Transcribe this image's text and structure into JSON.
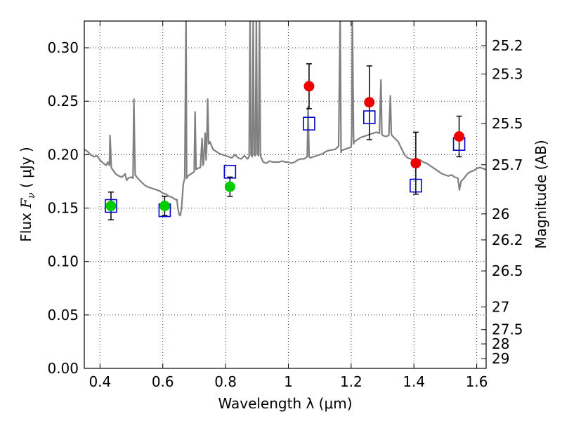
{
  "chart_data": {
    "type": "scatter",
    "title": "",
    "xlabel": "Wavelength  λ (μm)",
    "ylabel_left_text": "Flux ",
    "ylabel_left_symbol": "F",
    "ylabel_left_subscript": "ν",
    "ylabel_left_unit": " ( μJy )",
    "ylabel_right": "Magnitude (AB)",
    "xlim": [
      0.35,
      1.63
    ],
    "ylim": [
      0.0,
      0.325
    ],
    "grid": true,
    "x_ticks": [
      0.4,
      0.6,
      0.8,
      1.0,
      1.2,
      1.4,
      1.6
    ],
    "x_tick_labels": [
      "0.4",
      "0.6",
      "0.8",
      "1",
      "1.2",
      "1.4",
      "1.6"
    ],
    "y_ticks": [
      0.0,
      0.05,
      0.1,
      0.15,
      0.2,
      0.25,
      0.3
    ],
    "y_tick_labels": [
      "0.00",
      "0.05",
      "0.10",
      "0.15",
      "0.20",
      "0.25",
      "0.30"
    ],
    "right_ticks": [
      {
        "mag": 25.2,
        "label": "25.2"
      },
      {
        "mag": 25.3,
        "label": "25.3"
      },
      {
        "mag": 25.5,
        "label": "25.5"
      },
      {
        "mag": 25.7,
        "label": "25.7"
      },
      {
        "mag": 26.0,
        "label": "26"
      },
      {
        "mag": 26.2,
        "label": "26.2"
      },
      {
        "mag": 26.5,
        "label": "26.5"
      },
      {
        "mag": 27.0,
        "label": "27"
      },
      {
        "mag": 27.5,
        "label": "27.5"
      },
      {
        "mag": 28.0,
        "label": "28"
      },
      {
        "mag": 29.0,
        "label": "29"
      }
    ],
    "series": [
      {
        "kind": "line",
        "color": "#808080",
        "points": [
          [
            0.35,
            0.205
          ],
          [
            0.36,
            0.203
          ],
          [
            0.37,
            0.2
          ],
          [
            0.38,
            0.198
          ],
          [
            0.39,
            0.199
          ],
          [
            0.4,
            0.195
          ],
          [
            0.41,
            0.192
          ],
          [
            0.42,
            0.19
          ],
          [
            0.425,
            0.193
          ],
          [
            0.43,
            0.19
          ],
          [
            0.432,
            0.218
          ],
          [
            0.434,
            0.205
          ],
          [
            0.436,
            0.188
          ],
          [
            0.44,
            0.186
          ],
          [
            0.45,
            0.182
          ],
          [
            0.46,
            0.18
          ],
          [
            0.47,
            0.179
          ],
          [
            0.48,
            0.182
          ],
          [
            0.485,
            0.176
          ],
          [
            0.49,
            0.178
          ],
          [
            0.5,
            0.179
          ],
          [
            0.505,
            0.178
          ],
          [
            0.508,
            0.252
          ],
          [
            0.51,
            0.212
          ],
          [
            0.512,
            0.181
          ],
          [
            0.52,
            0.178
          ],
          [
            0.53,
            0.175
          ],
          [
            0.54,
            0.172
          ],
          [
            0.55,
            0.17
          ],
          [
            0.56,
            0.169
          ],
          [
            0.57,
            0.168
          ],
          [
            0.58,
            0.167
          ],
          [
            0.59,
            0.166
          ],
          [
            0.6,
            0.164
          ],
          [
            0.61,
            0.163
          ],
          [
            0.62,
            0.161
          ],
          [
            0.63,
            0.16
          ],
          [
            0.64,
            0.158
          ],
          [
            0.645,
            0.158
          ],
          [
            0.648,
            0.15
          ],
          [
            0.652,
            0.144
          ],
          [
            0.656,
            0.143
          ],
          [
            0.66,
            0.15
          ],
          [
            0.665,
            0.172
          ],
          [
            0.67,
            0.178
          ],
          [
            0.674,
            0.33
          ],
          [
            0.676,
            0.178
          ],
          [
            0.68,
            0.18
          ],
          [
            0.69,
            0.182
          ],
          [
            0.7,
            0.184
          ],
          [
            0.703,
            0.24
          ],
          [
            0.706,
            0.186
          ],
          [
            0.71,
            0.187
          ],
          [
            0.72,
            0.188
          ],
          [
            0.725,
            0.215
          ],
          [
            0.728,
            0.19
          ],
          [
            0.73,
            0.192
          ],
          [
            0.735,
            0.22
          ],
          [
            0.738,
            0.195
          ],
          [
            0.74,
            0.21
          ],
          [
            0.743,
            0.252
          ],
          [
            0.746,
            0.21
          ],
          [
            0.75,
            0.212
          ],
          [
            0.76,
            0.205
          ],
          [
            0.77,
            0.203
          ],
          [
            0.78,
            0.201
          ],
          [
            0.79,
            0.2
          ],
          [
            0.8,
            0.199
          ],
          [
            0.81,
            0.198
          ],
          [
            0.82,
            0.197
          ],
          [
            0.83,
            0.2
          ],
          [
            0.84,
            0.197
          ],
          [
            0.85,
            0.196
          ],
          [
            0.86,
            0.199
          ],
          [
            0.87,
            0.196
          ],
          [
            0.875,
            0.198
          ],
          [
            0.878,
            0.33
          ],
          [
            0.881,
            0.2
          ],
          [
            0.885,
            0.198
          ],
          [
            0.888,
            0.33
          ],
          [
            0.891,
            0.2
          ],
          [
            0.895,
            0.199
          ],
          [
            0.898,
            0.33
          ],
          [
            0.901,
            0.201
          ],
          [
            0.905,
            0.199
          ],
          [
            0.908,
            0.33
          ],
          [
            0.911,
            0.199
          ],
          [
            0.92,
            0.193
          ],
          [
            0.93,
            0.192
          ],
          [
            0.94,
            0.194
          ],
          [
            0.95,
            0.193
          ],
          [
            0.96,
            0.193
          ],
          [
            0.97,
            0.193
          ],
          [
            0.98,
            0.194
          ],
          [
            0.99,
            0.193
          ],
          [
            1.0,
            0.193
          ],
          [
            1.01,
            0.192
          ],
          [
            1.02,
            0.193
          ],
          [
            1.03,
            0.195
          ],
          [
            1.04,
            0.196
          ],
          [
            1.05,
            0.196
          ],
          [
            1.06,
            0.198
          ],
          [
            1.063,
            0.245
          ],
          [
            1.066,
            0.198
          ],
          [
            1.07,
            0.197
          ],
          [
            1.08,
            0.198
          ],
          [
            1.09,
            0.199
          ],
          [
            1.1,
            0.2
          ],
          [
            1.11,
            0.201
          ],
          [
            1.12,
            0.203
          ],
          [
            1.13,
            0.204
          ],
          [
            1.15,
            0.205
          ],
          [
            1.16,
            0.208
          ],
          [
            1.165,
            0.33
          ],
          [
            1.168,
            0.202
          ],
          [
            1.17,
            0.204
          ],
          [
            1.18,
            0.205
          ],
          [
            1.19,
            0.206
          ],
          [
            1.2,
            0.207
          ],
          [
            1.202,
            0.218
          ],
          [
            1.204,
            0.33
          ],
          [
            1.208,
            0.21
          ],
          [
            1.21,
            0.212
          ],
          [
            1.22,
            0.214
          ],
          [
            1.23,
            0.216
          ],
          [
            1.24,
            0.217
          ],
          [
            1.25,
            0.218
          ],
          [
            1.26,
            0.219
          ],
          [
            1.27,
            0.22
          ],
          [
            1.28,
            0.221
          ],
          [
            1.29,
            0.22
          ],
          [
            1.295,
            0.27
          ],
          [
            1.298,
            0.22
          ],
          [
            1.3,
            0.218
          ],
          [
            1.31,
            0.217
          ],
          [
            1.32,
            0.218
          ],
          [
            1.325,
            0.255
          ],
          [
            1.328,
            0.22
          ],
          [
            1.33,
            0.218
          ],
          [
            1.34,
            0.215
          ],
          [
            1.35,
            0.212
          ],
          [
            1.36,
            0.206
          ],
          [
            1.37,
            0.2
          ],
          [
            1.38,
            0.197
          ],
          [
            1.39,
            0.196
          ],
          [
            1.4,
            0.195
          ],
          [
            1.41,
            0.194
          ],
          [
            1.42,
            0.195
          ],
          [
            1.43,
            0.193
          ],
          [
            1.44,
            0.192
          ],
          [
            1.45,
            0.19
          ],
          [
            1.46,
            0.188
          ],
          [
            1.47,
            0.186
          ],
          [
            1.48,
            0.184
          ],
          [
            1.49,
            0.182
          ],
          [
            1.5,
            0.181
          ],
          [
            1.51,
            0.18
          ],
          [
            1.52,
            0.181
          ],
          [
            1.53,
            0.179
          ],
          [
            1.54,
            0.178
          ],
          [
            1.545,
            0.167
          ],
          [
            1.55,
            0.175
          ],
          [
            1.56,
            0.178
          ],
          [
            1.57,
            0.182
          ],
          [
            1.58,
            0.184
          ],
          [
            1.59,
            0.185
          ],
          [
            1.6,
            0.187
          ],
          [
            1.61,
            0.188
          ],
          [
            1.62,
            0.187
          ],
          [
            1.63,
            0.186
          ]
        ]
      },
      {
        "kind": "errorbar",
        "color": "#000000",
        "points": [
          {
            "x": 0.435,
            "y": 0.152,
            "lo": 0.139,
            "hi": 0.165
          },
          {
            "x": 0.606,
            "y": 0.152,
            "lo": 0.143,
            "hi": 0.161
          },
          {
            "x": 0.814,
            "y": 0.17,
            "lo": 0.161,
            "hi": 0.179
          },
          {
            "x": 1.066,
            "y": 0.264,
            "lo": 0.243,
            "hi": 0.285
          },
          {
            "x": 1.258,
            "y": 0.249,
            "lo": 0.214,
            "hi": 0.283
          },
          {
            "x": 1.406,
            "y": 0.192,
            "lo": 0.163,
            "hi": 0.221
          },
          {
            "x": 1.544,
            "y": 0.217,
            "lo": 0.198,
            "hi": 0.236
          }
        ]
      },
      {
        "kind": "open-square",
        "color": "#0000cc",
        "points": [
          {
            "x": 0.435,
            "y": 0.152
          },
          {
            "x": 0.606,
            "y": 0.148
          },
          {
            "x": 0.814,
            "y": 0.184
          },
          {
            "x": 1.066,
            "y": 0.229
          },
          {
            "x": 1.258,
            "y": 0.235
          },
          {
            "x": 1.406,
            "y": 0.171
          },
          {
            "x": 1.544,
            "y": 0.21
          }
        ]
      },
      {
        "kind": "dot",
        "color": "#00cc00",
        "points": [
          {
            "x": 0.435,
            "y": 0.152
          },
          {
            "x": 0.606,
            "y": 0.152
          },
          {
            "x": 0.814,
            "y": 0.17
          }
        ]
      },
      {
        "kind": "dot",
        "color": "#ee0000",
        "points": [
          {
            "x": 1.066,
            "y": 0.264
          },
          {
            "x": 1.258,
            "y": 0.249
          },
          {
            "x": 1.406,
            "y": 0.192
          },
          {
            "x": 1.544,
            "y": 0.217
          }
        ]
      }
    ]
  }
}
